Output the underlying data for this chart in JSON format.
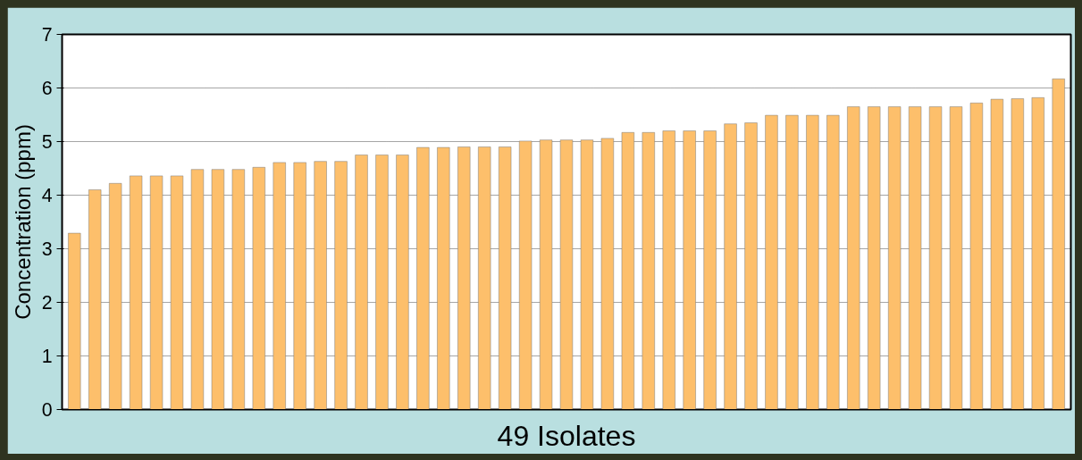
{
  "chart_data": {
    "type": "bar",
    "xlabel": "49 Isolates",
    "ylabel": "Concentration (ppm)",
    "categories": [
      null,
      null,
      null,
      null,
      null,
      null,
      null,
      null,
      null,
      null,
      null,
      null,
      null,
      null,
      null,
      null,
      null,
      null,
      null,
      null,
      null,
      null,
      null,
      null,
      null,
      null,
      null,
      null,
      null,
      null,
      null,
      null,
      null,
      null,
      null,
      null,
      null,
      null,
      null,
      null,
      null,
      null,
      null,
      null,
      null,
      null,
      null,
      null,
      null
    ],
    "values": [
      3.29,
      4.1,
      4.22,
      4.36,
      4.36,
      4.36,
      4.48,
      4.48,
      4.48,
      4.52,
      4.61,
      4.61,
      4.63,
      4.63,
      4.75,
      4.75,
      4.75,
      4.89,
      4.89,
      4.9,
      4.9,
      4.9,
      5.01,
      5.03,
      5.03,
      5.03,
      5.06,
      5.17,
      5.17,
      5.2,
      5.2,
      5.2,
      5.33,
      5.35,
      5.49,
      5.49,
      5.49,
      5.49,
      5.65,
      5.65,
      5.65,
      5.65,
      5.65,
      5.65,
      5.72,
      5.79,
      5.8,
      5.82,
      6.17
    ],
    "color": "#fdbf6b",
    "ylim": [
      0,
      7
    ],
    "yticks": [
      0,
      1,
      2,
      3,
      4,
      5,
      6,
      7
    ],
    "grid": "y",
    "tick_labels": "y"
  }
}
